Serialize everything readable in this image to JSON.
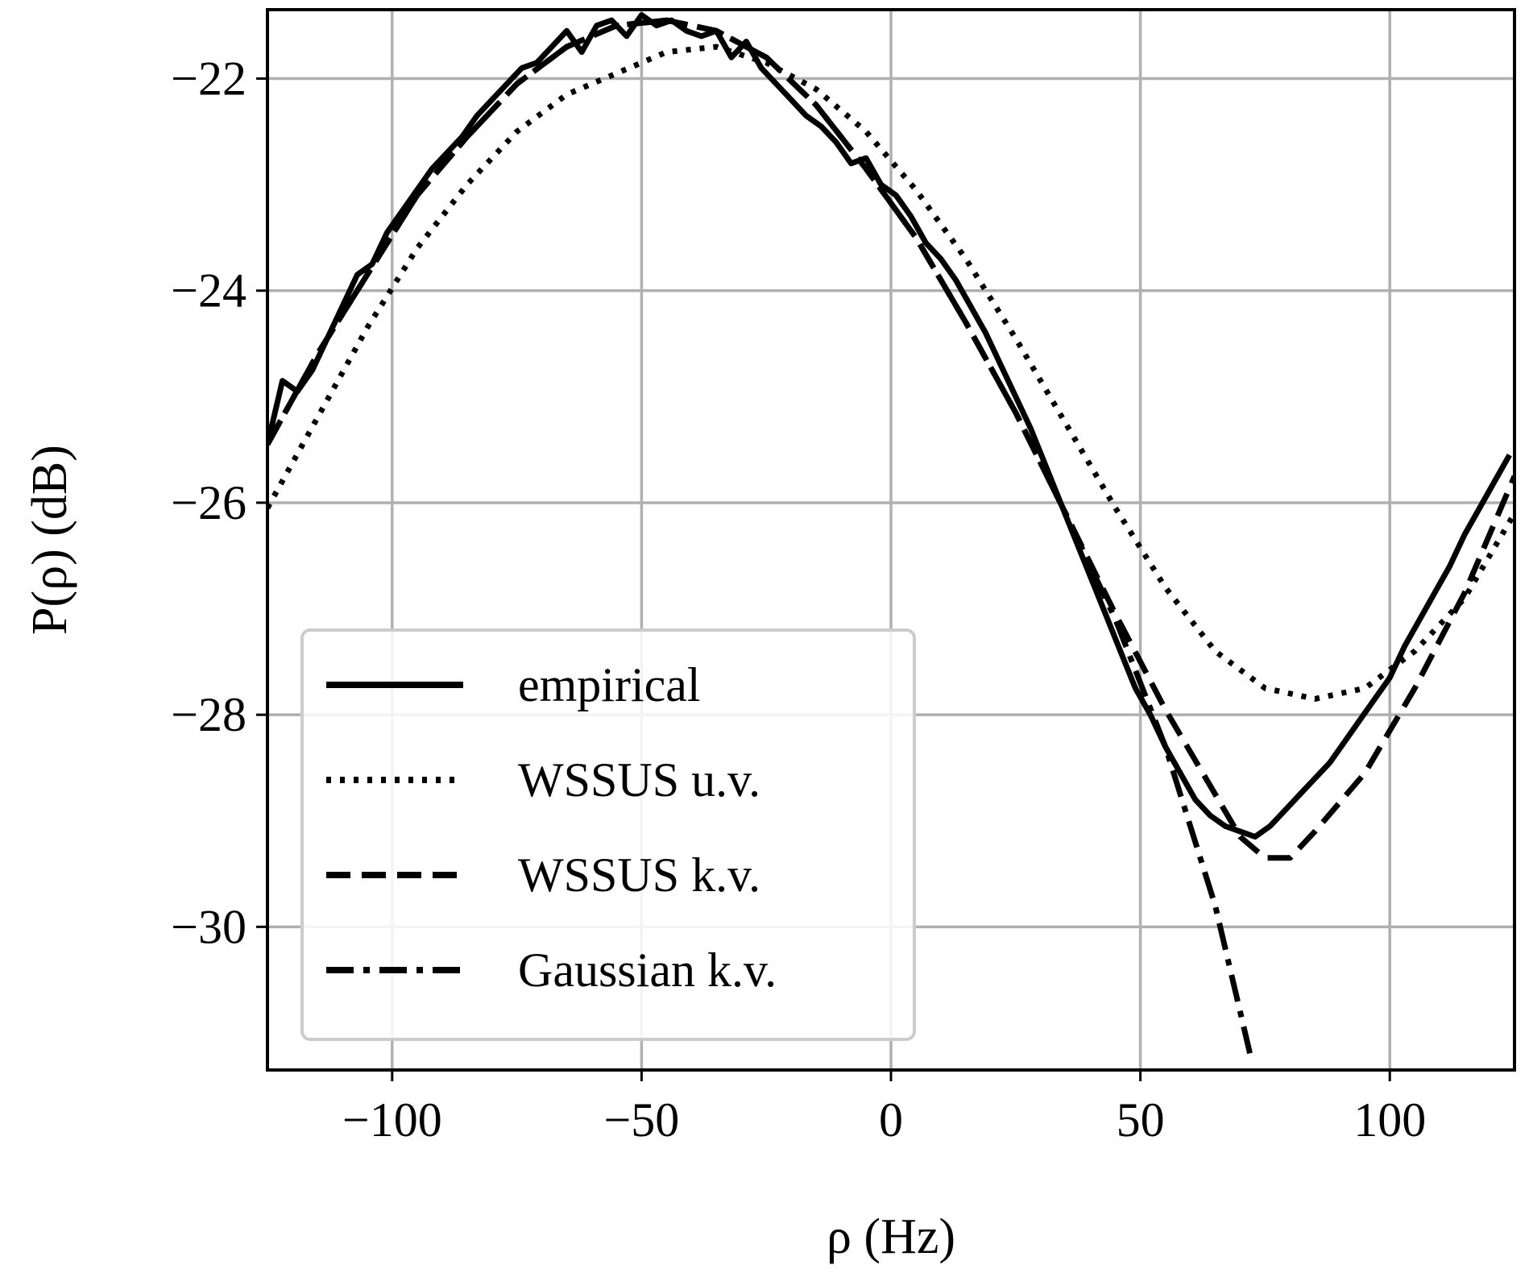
{
  "chart_data": {
    "type": "line",
    "title": "",
    "xlabel": "ρ (Hz)",
    "ylabel": "P(ρ) (dB)",
    "xlim": [
      -125,
      125
    ],
    "ylim": [
      -31.35,
      -21.35
    ],
    "grid": true,
    "legend_position": "lower-left",
    "xticks": [
      -100,
      -50,
      0,
      50,
      100
    ],
    "xtick_labels": [
      "−100",
      "−50",
      "0",
      "50",
      "100"
    ],
    "yticks": [
      -22,
      -24,
      -26,
      -28,
      -30
    ],
    "ytick_labels": [
      "−22",
      "−24",
      "−26",
      "−28",
      "−30"
    ],
    "colors": {
      "line": "#000000",
      "grid": "#b0b0b0",
      "frame": "#000000",
      "legend_border": "#cccccc"
    },
    "series": [
      {
        "name": "empirical",
        "style": "solid",
        "x": [
          -125,
          -122,
          -119,
          -116,
          -113,
          -110,
          -107,
          -104,
          -101,
          -98,
          -95,
          -92,
          -89,
          -86,
          -83,
          -80,
          -77,
          -74,
          -71,
          -68,
          -65,
          -62,
          -59,
          -56,
          -53,
          -50,
          -47,
          -44,
          -41,
          -38,
          -35,
          -32,
          -29,
          -26,
          -23,
          -20,
          -17,
          -14,
          -11,
          -8,
          -5,
          -2,
          1,
          4,
          7,
          10,
          13,
          16,
          19,
          22,
          25,
          28,
          31,
          34,
          37,
          40,
          43,
          46,
          49,
          52,
          55,
          58,
          61,
          64,
          67,
          70,
          73,
          76,
          79,
          82,
          85,
          88,
          91,
          94,
          97,
          100,
          103,
          106,
          109,
          112,
          115,
          118,
          121,
          124
        ],
        "y": [
          -25.45,
          -24.85,
          -24.95,
          -24.75,
          -24.45,
          -24.15,
          -23.85,
          -23.75,
          -23.45,
          -23.25,
          -23.05,
          -22.85,
          -22.7,
          -22.55,
          -22.35,
          -22.2,
          -22.05,
          -21.9,
          -21.85,
          -21.7,
          -21.55,
          -21.75,
          -21.5,
          -21.45,
          -21.6,
          -21.4,
          -21.5,
          -21.45,
          -21.55,
          -21.6,
          -21.55,
          -21.8,
          -21.65,
          -21.9,
          -22.05,
          -22.2,
          -22.35,
          -22.45,
          -22.6,
          -22.8,
          -22.75,
          -23.0,
          -23.1,
          -23.3,
          -23.55,
          -23.7,
          -23.9,
          -24.15,
          -24.4,
          -24.7,
          -25.0,
          -25.3,
          -25.65,
          -26.0,
          -26.35,
          -26.7,
          -27.05,
          -27.4,
          -27.75,
          -28.0,
          -28.3,
          -28.55,
          -28.8,
          -28.95,
          -29.05,
          -29.1,
          -29.15,
          -29.05,
          -28.9,
          -28.75,
          -28.6,
          -28.45,
          -28.25,
          -28.05,
          -27.85,
          -27.65,
          -27.35,
          -27.1,
          -26.85,
          -26.6,
          -26.3,
          -26.05,
          -25.8,
          -25.55
        ]
      },
      {
        "name": "WSSUS u.v.",
        "style": "dotted",
        "x": [
          -125,
          -115,
          -105,
          -95,
          -85,
          -75,
          -65,
          -55,
          -45,
          -35,
          -25,
          -15,
          -5,
          5,
          15,
          25,
          35,
          45,
          55,
          65,
          75,
          85,
          95,
          105,
          115,
          125
        ],
        "y": [
          -26.05,
          -25.2,
          -24.35,
          -23.6,
          -23.0,
          -22.5,
          -22.15,
          -21.95,
          -21.75,
          -21.7,
          -21.85,
          -22.1,
          -22.5,
          -23.05,
          -23.7,
          -24.45,
          -25.25,
          -26.05,
          -26.8,
          -27.4,
          -27.75,
          -27.85,
          -27.75,
          -27.4,
          -26.9,
          -26.1
        ]
      },
      {
        "name": "WSSUS k.v.",
        "style": "dashed",
        "x": [
          -125,
          -115,
          -105,
          -95,
          -85,
          -75,
          -65,
          -55,
          -45,
          -35,
          -25,
          -15,
          -5,
          5,
          15,
          25,
          35,
          45,
          55,
          65,
          70,
          75,
          80,
          85,
          95,
          105,
          115,
          125
        ],
        "y": [
          -25.45,
          -24.6,
          -23.85,
          -23.1,
          -22.55,
          -22.05,
          -21.7,
          -21.5,
          -21.45,
          -21.55,
          -21.8,
          -22.25,
          -22.85,
          -23.5,
          -24.3,
          -25.15,
          -26.1,
          -27.05,
          -27.95,
          -28.75,
          -29.15,
          -29.35,
          -29.35,
          -29.1,
          -28.55,
          -27.75,
          -26.85,
          -25.75
        ]
      },
      {
        "name": "Gaussian k.v.",
        "style": "dashdot",
        "x": [
          -125,
          -115,
          -105,
          -95,
          -85,
          -75,
          -65,
          -55,
          -45,
          -35,
          -25,
          -15,
          -5,
          5,
          15,
          25,
          35,
          45,
          55,
          65,
          72
        ],
        "y": [
          -25.45,
          -24.6,
          -23.85,
          -23.1,
          -22.55,
          -22.05,
          -21.7,
          -21.5,
          -21.45,
          -21.55,
          -21.8,
          -22.25,
          -22.85,
          -23.5,
          -24.3,
          -25.15,
          -26.1,
          -27.1,
          -28.3,
          -29.8,
          -31.2
        ]
      }
    ]
  }
}
